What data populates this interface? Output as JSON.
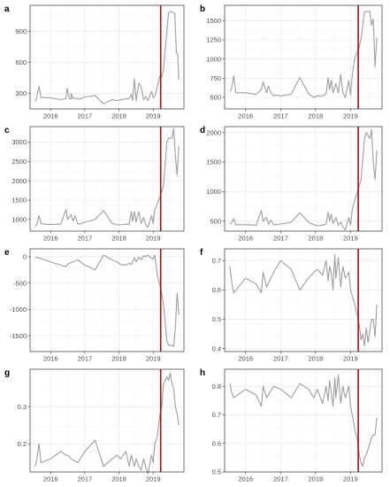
{
  "chart_data": [
    {
      "label": "a",
      "type": "line",
      "ylim": [
        150,
        1150
      ],
      "yticks": [
        300,
        600,
        900
      ],
      "x": [
        2015.55,
        2015.6,
        2015.66,
        2015.72,
        2015.8,
        2016.0,
        2016.3,
        2016.45,
        2016.48,
        2016.55,
        2016.6,
        2016.6,
        2016.66,
        2016.72,
        2016.8,
        2016.9,
        2017.0,
        2017.3,
        2017.55,
        2017.8,
        2017.95,
        2018.05,
        2018.18,
        2018.3,
        2018.36,
        2018.4,
        2018.45,
        2018.5,
        2018.58,
        2018.65,
        2018.72,
        2018.78,
        2018.85,
        2018.95,
        2019.0,
        2019.05,
        2019.12,
        2019.2,
        2019.25,
        2019.3,
        2019.4,
        2019.45,
        2019.55,
        2019.63,
        2019.68,
        2019.72,
        2019.75
      ],
      "y": [
        220,
        265,
        370,
        260,
        260,
        255,
        240,
        250,
        350,
        250,
        245,
        300,
        250,
        255,
        245,
        250,
        265,
        280,
        200,
        240,
        230,
        240,
        245,
        250,
        290,
        230,
        440,
        230,
        400,
        360,
        240,
        270,
        230,
        320,
        260,
        270,
        370,
        470,
        460,
        530,
        900,
        1080,
        1090,
        1070,
        690,
        680,
        430
      ],
      "vline": 2019.22
    },
    {
      "label": "b",
      "type": "line",
      "ylim": [
        350,
        1700
      ],
      "yticks": [
        500,
        750,
        1000,
        1250,
        1500
      ],
      "x": [
        2015.55,
        2015.6,
        2015.66,
        2015.72,
        2015.8,
        2016.0,
        2016.3,
        2016.45,
        2016.5,
        2016.6,
        2016.65,
        2016.72,
        2016.8,
        2016.9,
        2017.0,
        2017.3,
        2017.55,
        2017.8,
        2017.95,
        2018.05,
        2018.2,
        2018.3,
        2018.36,
        2018.4,
        2018.45,
        2018.5,
        2018.58,
        2018.65,
        2018.72,
        2018.78,
        2018.85,
        2018.95,
        2019.0,
        2019.05,
        2019.12,
        2019.2,
        2019.25,
        2019.3,
        2019.4,
        2019.45,
        2019.55,
        2019.6,
        2019.65,
        2019.7,
        2019.75
      ],
      "y": [
        580,
        620,
        780,
        560,
        560,
        560,
        540,
        600,
        700,
        560,
        650,
        560,
        520,
        530,
        520,
        540,
        760,
        550,
        500,
        520,
        520,
        550,
        760,
        600,
        730,
        560,
        680,
        560,
        800,
        560,
        500,
        720,
        530,
        800,
        1010,
        1100,
        1150,
        1270,
        1610,
        1620,
        1620,
        1440,
        1520,
        900,
        1280
      ],
      "vline": 2019.22
    },
    {
      "label": "c",
      "type": "line",
      "ylim": [
        700,
        3400
      ],
      "yticks": [
        1000,
        1500,
        2000,
        2500,
        3000
      ],
      "x": [
        2015.55,
        2015.6,
        2015.66,
        2015.72,
        2015.8,
        2016.0,
        2016.3,
        2016.45,
        2016.5,
        2016.6,
        2016.66,
        2016.72,
        2016.8,
        2016.9,
        2017.0,
        2017.3,
        2017.55,
        2017.8,
        2017.95,
        2018.05,
        2018.2,
        2018.3,
        2018.36,
        2018.4,
        2018.45,
        2018.5,
        2018.58,
        2018.65,
        2018.72,
        2018.78,
        2018.85,
        2018.95,
        2019.0,
        2019.05,
        2019.12,
        2019.2,
        2019.25,
        2019.3,
        2019.4,
        2019.45,
        2019.55,
        2019.6,
        2019.65,
        2019.7,
        2019.75
      ],
      "y": [
        820,
        880,
        1100,
        900,
        880,
        870,
        880,
        1260,
        1000,
        1120,
        960,
        1100,
        880,
        900,
        930,
        1000,
        1230,
        900,
        860,
        860,
        880,
        870,
        1200,
        950,
        1200,
        930,
        1200,
        900,
        1050,
        870,
        800,
        1100,
        900,
        1250,
        1400,
        1600,
        1720,
        1850,
        3000,
        3100,
        3100,
        3350,
        2650,
        2150,
        2900
      ],
      "vline": 2019.22
    },
    {
      "label": "d",
      "type": "line",
      "ylim": [
        330,
        2100
      ],
      "yticks": [
        500,
        1000,
        1500,
        2000
      ],
      "x": [
        2015.55,
        2015.6,
        2015.66,
        2015.72,
        2015.8,
        2016.0,
        2016.3,
        2016.45,
        2016.5,
        2016.6,
        2016.66,
        2016.72,
        2016.8,
        2016.9,
        2017.0,
        2017.3,
        2017.55,
        2017.8,
        2017.95,
        2018.05,
        2018.2,
        2018.3,
        2018.36,
        2018.4,
        2018.45,
        2018.5,
        2018.58,
        2018.65,
        2018.72,
        2018.78,
        2018.85,
        2018.95,
        2019.0,
        2019.05,
        2019.12,
        2019.2,
        2019.25,
        2019.3,
        2019.4,
        2019.45,
        2019.55,
        2019.6,
        2019.65,
        2019.7,
        2019.75
      ],
      "y": [
        450,
        470,
        540,
        440,
        440,
        440,
        430,
        680,
        500,
        560,
        440,
        520,
        440,
        440,
        450,
        480,
        640,
        480,
        440,
        420,
        430,
        450,
        650,
        500,
        620,
        460,
        560,
        430,
        480,
        400,
        350,
        560,
        430,
        700,
        850,
        1000,
        1100,
        1200,
        1900,
        2000,
        1900,
        2050,
        1500,
        1200,
        1700
      ],
      "vline": 2019.22
    },
    {
      "label": "e",
      "type": "line",
      "ylim": [
        -1800,
        150
      ],
      "yticks": [
        -1500,
        -1000,
        -500,
        0
      ],
      "x": [
        2015.55,
        2015.6,
        2015.7,
        2016.0,
        2016.3,
        2016.45,
        2016.5,
        2016.6,
        2016.8,
        2017.0,
        2017.3,
        2017.55,
        2017.8,
        2017.95,
        2018.05,
        2018.2,
        2018.3,
        2018.36,
        2018.45,
        2018.5,
        2018.58,
        2018.65,
        2018.72,
        2018.78,
        2018.85,
        2018.95,
        2019.0,
        2019.05,
        2019.12,
        2019.2,
        2019.25,
        2019.3,
        2019.4,
        2019.45,
        2019.55,
        2019.6,
        2019.65,
        2019.7,
        2019.75
      ],
      "y": [
        -10,
        -20,
        -30,
        -100,
        -160,
        -190,
        -140,
        -110,
        -60,
        -160,
        -250,
        30,
        -60,
        -100,
        -150,
        -160,
        -120,
        -150,
        -20,
        -100,
        -10,
        -60,
        20,
        0,
        30,
        -30,
        -40,
        30,
        -350,
        -550,
        -700,
        -900,
        -1600,
        -1680,
        -1680,
        -1700,
        -1350,
        -690,
        -1100
      ],
      "vline": 2019.22
    },
    {
      "label": "f",
      "type": "line",
      "ylim": [
        0.39,
        0.74
      ],
      "yticks": [
        0.4,
        0.5,
        0.6,
        0.7
      ],
      "x": [
        2015.55,
        2015.6,
        2015.66,
        2016.0,
        2016.3,
        2016.45,
        2016.5,
        2016.6,
        2016.8,
        2017.0,
        2017.3,
        2017.55,
        2017.8,
        2017.95,
        2018.05,
        2018.2,
        2018.3,
        2018.36,
        2018.4,
        2018.45,
        2018.5,
        2018.55,
        2018.58,
        2018.65,
        2018.72,
        2018.78,
        2018.85,
        2018.95,
        2019.0,
        2019.05,
        2019.12,
        2019.2,
        2019.25,
        2019.3,
        2019.35,
        2019.4,
        2019.45,
        2019.5,
        2019.55,
        2019.6,
        2019.65,
        2019.7,
        2019.75
      ],
      "y": [
        0.68,
        0.63,
        0.59,
        0.64,
        0.62,
        0.59,
        0.66,
        0.61,
        0.66,
        0.7,
        0.67,
        0.6,
        0.64,
        0.66,
        0.67,
        0.65,
        0.7,
        0.63,
        0.68,
        0.66,
        0.6,
        0.72,
        0.64,
        0.71,
        0.61,
        0.68,
        0.64,
        0.66,
        0.6,
        0.58,
        0.55,
        0.51,
        0.48,
        0.43,
        0.45,
        0.41,
        0.47,
        0.42,
        0.46,
        0.5,
        0.5,
        0.44,
        0.55
      ],
      "vline": 2019.22
    },
    {
      "label": "g",
      "type": "line",
      "ylim": [
        0.125,
        0.4
      ],
      "yticks": [
        0.2,
        0.3
      ],
      "x": [
        2015.55,
        2015.6,
        2015.66,
        2015.72,
        2016.0,
        2016.3,
        2016.45,
        2016.5,
        2016.6,
        2016.8,
        2017.0,
        2017.3,
        2017.55,
        2017.8,
        2017.95,
        2018.05,
        2018.2,
        2018.3,
        2018.36,
        2018.45,
        2018.5,
        2018.58,
        2018.65,
        2018.72,
        2018.78,
        2018.85,
        2018.95,
        2019.0,
        2019.05,
        2019.12,
        2019.2,
        2019.25,
        2019.3,
        2019.4,
        2019.45,
        2019.5,
        2019.55,
        2019.6,
        2019.65,
        2019.7,
        2019.75
      ],
      "y": [
        0.14,
        0.16,
        0.2,
        0.15,
        0.16,
        0.18,
        0.17,
        0.17,
        0.16,
        0.15,
        0.18,
        0.21,
        0.14,
        0.16,
        0.17,
        0.16,
        0.18,
        0.14,
        0.17,
        0.14,
        0.16,
        0.14,
        0.13,
        0.16,
        0.14,
        0.12,
        0.17,
        0.15,
        0.2,
        0.22,
        0.28,
        0.3,
        0.36,
        0.38,
        0.37,
        0.39,
        0.36,
        0.35,
        0.3,
        0.28,
        0.25
      ],
      "vline": 2019.22
    },
    {
      "label": "h",
      "type": "line",
      "ylim": [
        0.5,
        0.86
      ],
      "yticks": [
        0.5,
        0.6,
        0.7,
        0.8
      ],
      "x": [
        2015.55,
        2015.6,
        2015.66,
        2016.0,
        2016.3,
        2016.45,
        2016.5,
        2016.6,
        2016.8,
        2017.0,
        2017.3,
        2017.55,
        2017.8,
        2017.95,
        2018.05,
        2018.2,
        2018.3,
        2018.36,
        2018.4,
        2018.45,
        2018.5,
        2018.55,
        2018.58,
        2018.65,
        2018.72,
        2018.78,
        2018.85,
        2018.95,
        2019.0,
        2019.05,
        2019.12,
        2019.2,
        2019.25,
        2019.3,
        2019.35,
        2019.4,
        2019.45,
        2019.5,
        2019.55,
        2019.6,
        2019.65,
        2019.7,
        2019.75
      ],
      "y": [
        0.81,
        0.78,
        0.76,
        0.79,
        0.77,
        0.73,
        0.8,
        0.76,
        0.8,
        0.79,
        0.76,
        0.81,
        0.79,
        0.76,
        0.79,
        0.74,
        0.8,
        0.75,
        0.82,
        0.78,
        0.73,
        0.83,
        0.76,
        0.84,
        0.74,
        0.8,
        0.76,
        0.8,
        0.73,
        0.7,
        0.65,
        0.61,
        0.56,
        0.53,
        0.52,
        0.55,
        0.56,
        0.58,
        0.6,
        0.62,
        0.63,
        0.63,
        0.69
      ],
      "vline": 2019.22
    }
  ],
  "shared": {
    "xlim": [
      2015.4,
      2019.9
    ],
    "xticks": [
      2016,
      2017,
      2018,
      2019
    ],
    "line_color": "#9e9e9e",
    "vline_color": "#a50f15"
  }
}
